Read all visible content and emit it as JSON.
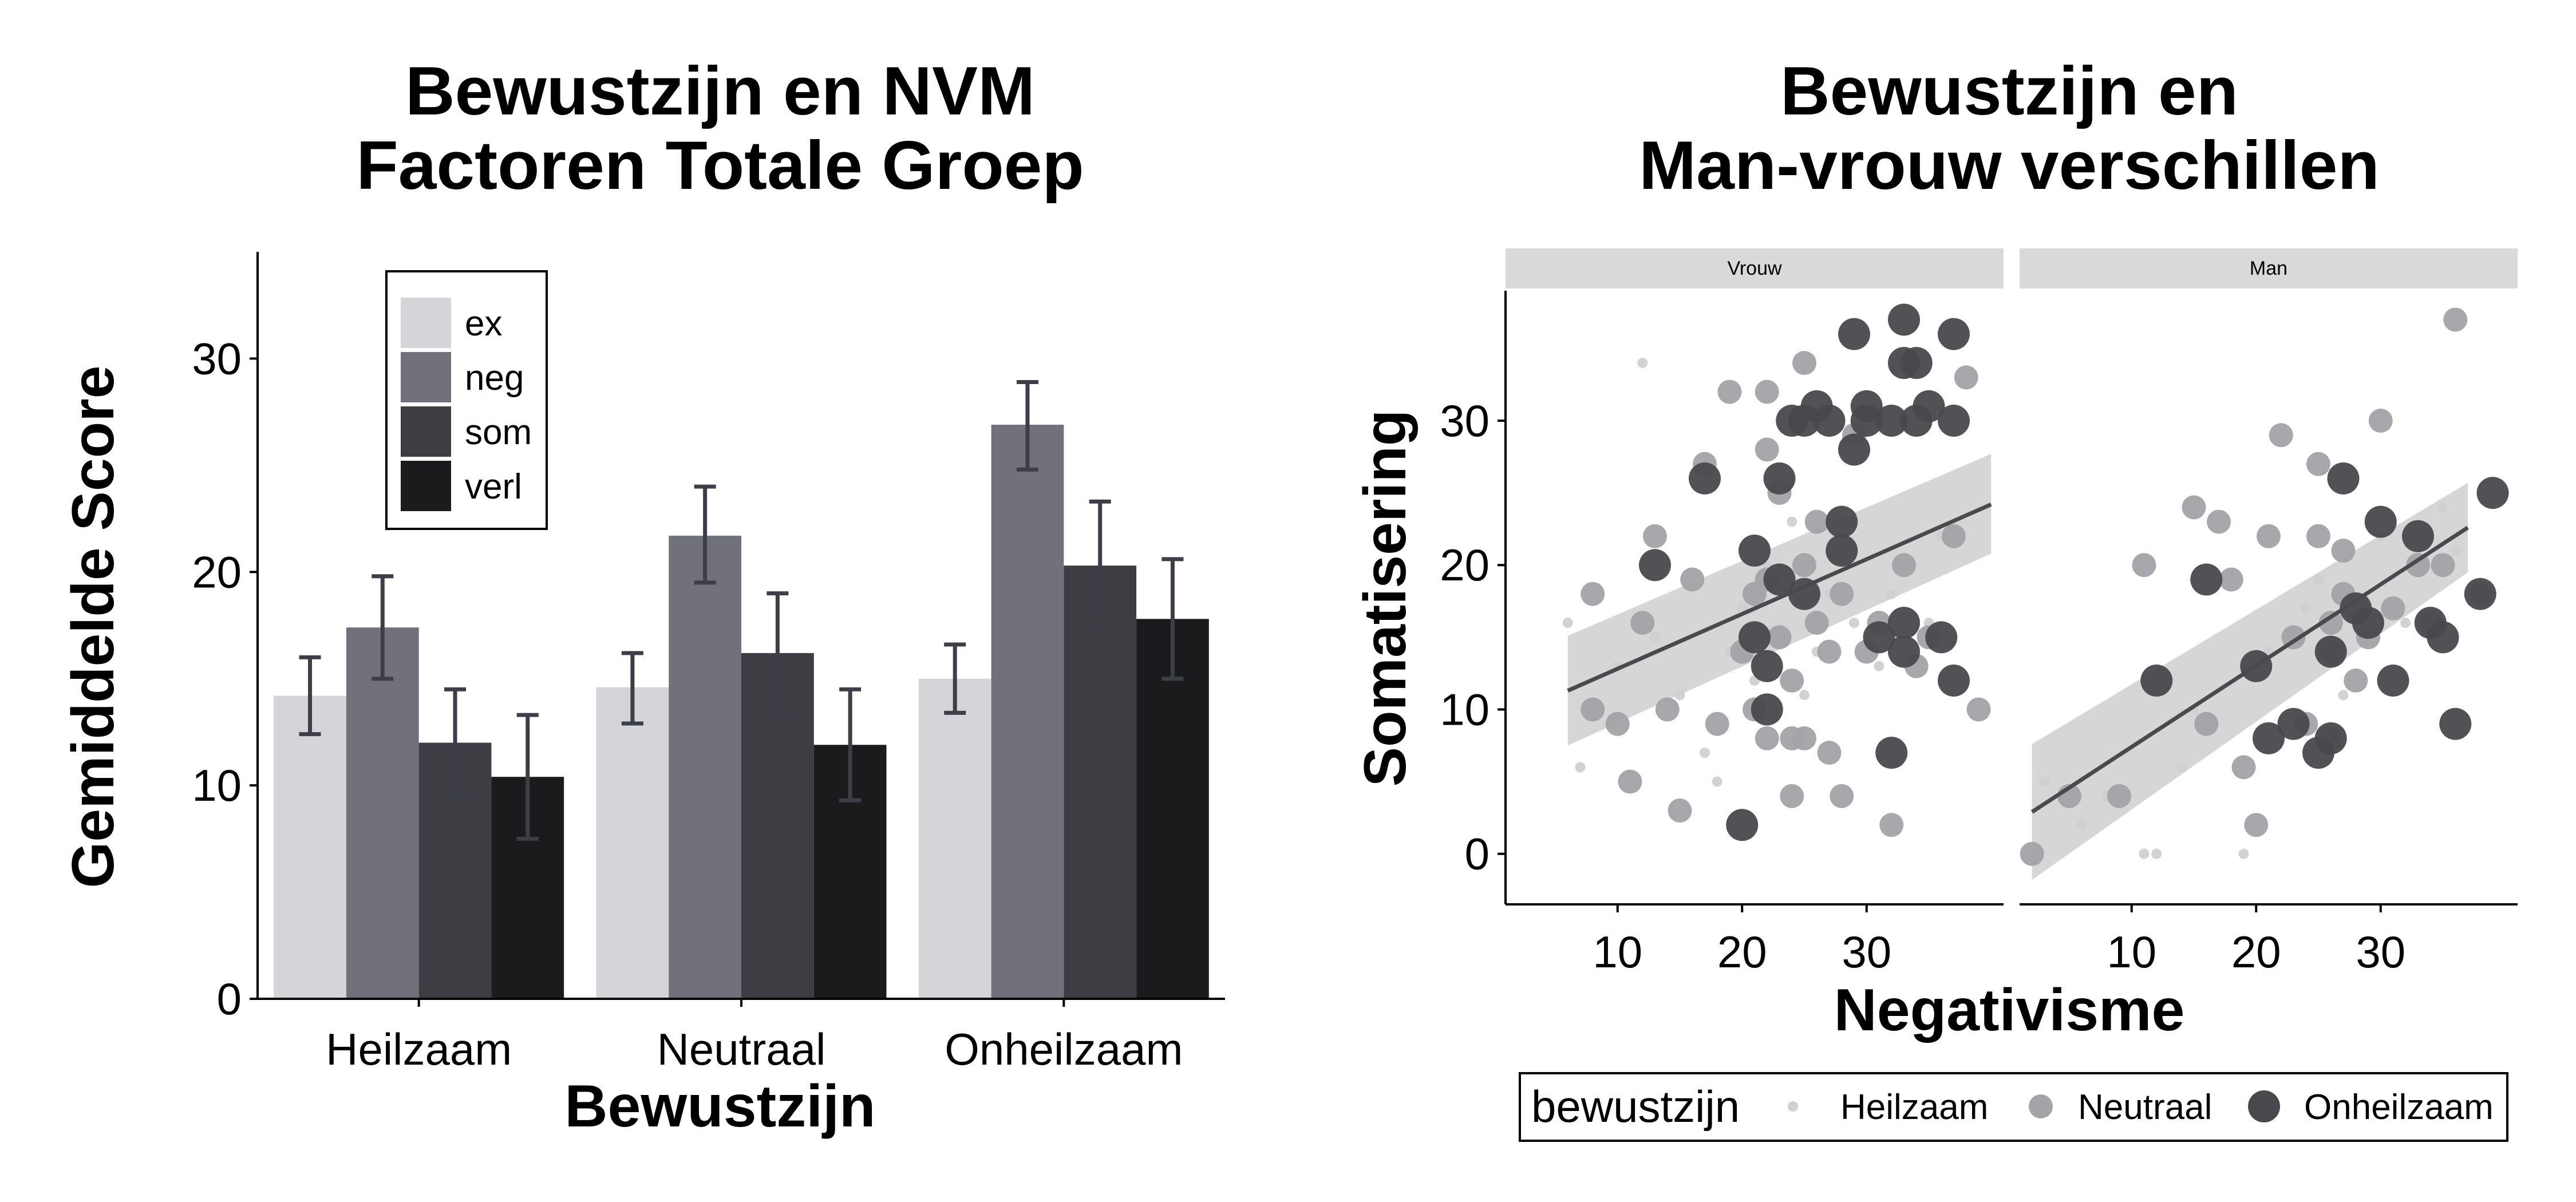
{
  "colors": {
    "ex": "#d5d5d9",
    "neg": "#71717b",
    "som": "#3d3d43",
    "verl": "#1b1b1d",
    "errorbar": "#3e3e48",
    "strip_bg": "#d9d9d9",
    "point_heilzaam": "#d0d0d0",
    "point_neutraal": "#a3a3a8",
    "point_onheilzaam": "#48484d",
    "fit_line": "#4a4a4e",
    "ci_band": "#c8c8c8"
  },
  "chart_data": [
    {
      "type": "bar",
      "title": "Bewustzijn en NVM\nFactoren Totale Groep",
      "xlabel": "Bewustzijn",
      "ylabel": "Gemiddelde Score",
      "ylim": [
        0,
        35
      ],
      "yticks": [
        0,
        10,
        20,
        30
      ],
      "grid": false,
      "legend_placement": "top-left inside",
      "categories": [
        "Heilzaam",
        "Neutraal",
        "Onheilzaam"
      ],
      "series": [
        {
          "name": "ex",
          "values": [
            14.2,
            14.6,
            15.0
          ],
          "err_low": [
            12.4,
            12.9,
            13.4
          ],
          "err_high": [
            16.0,
            16.2,
            16.6
          ]
        },
        {
          "name": "neg",
          "values": [
            17.4,
            21.7,
            26.9
          ],
          "err_low": [
            15.0,
            19.5,
            24.8
          ],
          "err_high": [
            19.8,
            24.0,
            28.9
          ]
        },
        {
          "name": "som",
          "values": [
            12.0,
            16.2,
            20.3
          ],
          "err_low": [
            9.5,
            13.3,
            17.4
          ],
          "err_high": [
            14.5,
            19.0,
            23.3
          ]
        },
        {
          "name": "verl",
          "values": [
            10.4,
            11.9,
            17.8
          ],
          "err_low": [
            7.5,
            9.3,
            15.0
          ],
          "err_high": [
            13.3,
            14.5,
            20.6
          ]
        }
      ]
    },
    {
      "type": "scatter",
      "title": "Bewustzijn en\nMan-vrouw verschillen",
      "xlabel": "Negativisme",
      "ylabel": "Somatisering",
      "xlim": [
        1,
        41
      ],
      "ylim": [
        -3.5,
        39
      ],
      "xticks": [
        10,
        20,
        30
      ],
      "yticks": [
        0,
        10,
        20,
        30
      ],
      "grid": false,
      "legend_title": "bewustzijn",
      "legend_placement": "bottom",
      "legend_entries": [
        "Heilzaam",
        "Neutraal",
        "Onheilzaam"
      ],
      "panels": [
        {
          "label": "Vrouw",
          "fit": {
            "x": [
              6,
              40
            ],
            "y": [
              11.3,
              24.2
            ],
            "ci_low_start": 7.5,
            "ci_high_start": 15.1,
            "ci_low_end": 20.8,
            "ci_high_end": 27.7
          },
          "points": {
            "Heilzaam": [
              [
                6,
                16
              ],
              [
                7,
                6
              ],
              [
                10,
                13
              ],
              [
                12,
                34
              ],
              [
                13,
                15
              ],
              [
                15,
                11
              ],
              [
                17,
                7
              ],
              [
                18,
                5
              ],
              [
                19,
                14
              ],
              [
                20,
                17
              ],
              [
                21,
                12
              ],
              [
                22,
                20
              ],
              [
                23,
                26
              ],
              [
                24,
                23
              ],
              [
                25,
                11
              ],
              [
                26,
                14
              ],
              [
                27,
                18
              ],
              [
                28,
                23
              ],
              [
                29,
                16
              ],
              [
                31,
                13
              ],
              [
                32,
                18
              ],
              [
                35,
                16
              ],
              [
                36,
                22
              ]
            ],
            "Neutraal": [
              [
                8,
                18
              ],
              [
                8,
                10
              ],
              [
                10,
                9
              ],
              [
                11,
                5
              ],
              [
                12,
                16
              ],
              [
                13,
                22
              ],
              [
                14,
                10
              ],
              [
                15,
                3
              ],
              [
                16,
                19
              ],
              [
                17,
                27
              ],
              [
                18,
                9
              ],
              [
                19,
                32
              ],
              [
                20,
                14
              ],
              [
                21,
                18
              ],
              [
                21,
                10
              ],
              [
                22,
                28
              ],
              [
                22,
                32
              ],
              [
                22,
                19
              ],
              [
                22,
                8
              ],
              [
                23,
                25
              ],
              [
                23,
                15
              ],
              [
                24,
                4
              ],
              [
                24,
                8
              ],
              [
                24,
                12
              ],
              [
                25,
                34
              ],
              [
                25,
                20
              ],
              [
                25,
                8
              ],
              [
                26,
                23
              ],
              [
                26,
                16
              ],
              [
                27,
                7
              ],
              [
                27,
                14
              ],
              [
                28,
                18
              ],
              [
                28,
                4
              ],
              [
                29,
                29
              ],
              [
                30,
                14
              ],
              [
                31,
                16
              ],
              [
                32,
                2
              ],
              [
                33,
                20
              ],
              [
                34,
                13
              ],
              [
                35,
                15
              ],
              [
                37,
                22
              ],
              [
                38,
                33
              ],
              [
                39,
                10
              ]
            ],
            "Onheilzaam": [
              [
                13,
                20
              ],
              [
                17,
                26
              ],
              [
                20,
                2
              ],
              [
                21,
                21
              ],
              [
                21,
                15
              ],
              [
                22,
                10
              ],
              [
                22,
                13
              ],
              [
                23,
                26
              ],
              [
                23,
                19
              ],
              [
                24,
                30
              ],
              [
                25,
                18
              ],
              [
                25,
                30
              ],
              [
                26,
                31
              ],
              [
                27,
                30
              ],
              [
                28,
                23
              ],
              [
                28,
                21
              ],
              [
                29,
                36
              ],
              [
                29,
                28
              ],
              [
                30,
                30
              ],
              [
                30,
                31
              ],
              [
                31,
                15
              ],
              [
                32,
                30
              ],
              [
                32,
                7
              ],
              [
                33,
                37
              ],
              [
                33,
                34
              ],
              [
                34,
                34
              ],
              [
                34,
                30
              ],
              [
                35,
                31
              ],
              [
                36,
                15
              ],
              [
                37,
                36
              ],
              [
                37,
                12
              ],
              [
                37,
                30
              ],
              [
                33,
                14
              ],
              [
                33,
                16
              ]
            ]
          }
        },
        {
          "label": "Man",
          "fit": {
            "x": [
              2,
              37
            ],
            "y": [
              2.9,
              22.6
            ],
            "ci_low_start": -1.8,
            "ci_high_start": 7.6,
            "ci_low_end": 19.5,
            "ci_high_end": 25.7
          },
          "points": {
            "Heilzaam": [
              [
                3,
                5
              ],
              [
                6,
                2
              ],
              [
                8,
                4
              ],
              [
                11,
                0
              ],
              [
                12,
                0
              ],
              [
                14,
                6
              ],
              [
                15,
                10
              ],
              [
                19,
                0
              ],
              [
                21,
                14
              ],
              [
                24,
                17
              ],
              [
                25,
                19
              ],
              [
                27,
                11
              ],
              [
                28,
                16
              ],
              [
                30,
                22
              ],
              [
                32,
                16
              ],
              [
                35,
                24
              ],
              [
                36,
                21
              ]
            ],
            "Neutraal": [
              [
                2,
                0
              ],
              [
                5,
                4
              ],
              [
                9,
                4
              ],
              [
                11,
                20
              ],
              [
                15,
                24
              ],
              [
                16,
                9
              ],
              [
                17,
                23
              ],
              [
                18,
                19
              ],
              [
                19,
                6
              ],
              [
                20,
                2
              ],
              [
                21,
                22
              ],
              [
                22,
                29
              ],
              [
                23,
                15
              ],
              [
                24,
                9
              ],
              [
                25,
                27
              ],
              [
                25,
                22
              ],
              [
                26,
                16
              ],
              [
                27,
                21
              ],
              [
                27,
                18
              ],
              [
                28,
                12
              ],
              [
                29,
                15
              ],
              [
                30,
                30
              ],
              [
                31,
                17
              ],
              [
                33,
                20
              ],
              [
                34,
                16
              ],
              [
                35,
                20
              ],
              [
                36,
                37
              ],
              [
                38,
                18
              ],
              [
                26,
                14
              ],
              [
                26,
                8
              ]
            ],
            "Onheilzaam": [
              [
                12,
                12
              ],
              [
                16,
                19
              ],
              [
                20,
                13
              ],
              [
                21,
                8
              ],
              [
                23,
                9
              ],
              [
                25,
                7
              ],
              [
                26,
                14
              ],
              [
                27,
                26
              ],
              [
                28,
                17
              ],
              [
                29,
                16
              ],
              [
                30,
                23
              ],
              [
                31,
                12
              ],
              [
                33,
                22
              ],
              [
                34,
                16
              ],
              [
                35,
                15
              ],
              [
                36,
                9
              ],
              [
                38,
                18
              ],
              [
                39,
                25
              ],
              [
                26,
                8
              ]
            ]
          }
        }
      ]
    }
  ]
}
